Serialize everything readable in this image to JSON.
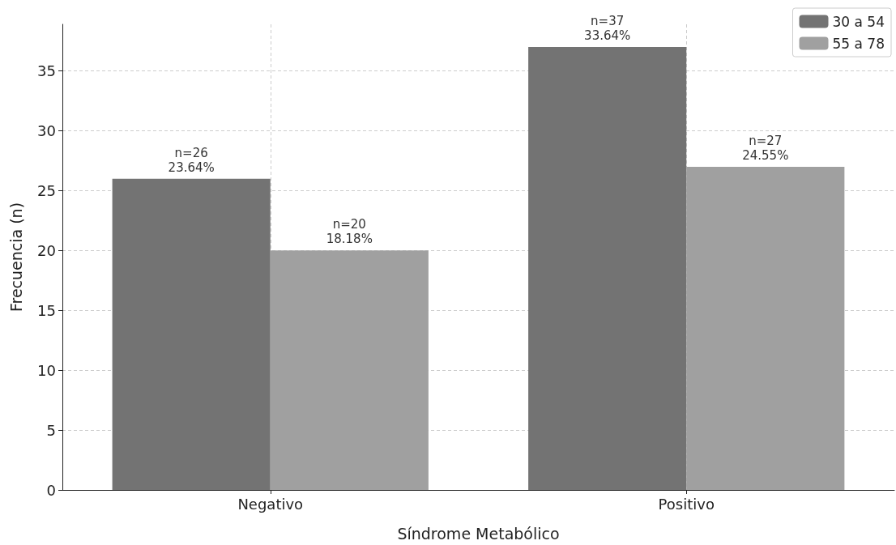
{
  "chart_data": {
    "type": "bar",
    "xlabel": "Síndrome Metabólico",
    "ylabel": "Frecuencia (n)",
    "categories": [
      "Negativo",
      "Positivo"
    ],
    "series": [
      {
        "name": "30 a 54",
        "color": "#737373",
        "values": [
          26,
          37
        ],
        "value_labels": [
          "n=26\n23.64%",
          "n=37\n33.64%"
        ]
      },
      {
        "name": "55 a 78",
        "color": "#a0a0a0",
        "values": [
          20,
          27
        ],
        "value_labels": [
          "n=20\n18.18%",
          "n=27\n24.55%"
        ]
      }
    ],
    "ylim": [
      0,
      38.9
    ],
    "yticks": [
      0,
      5,
      10,
      15,
      20,
      25,
      30,
      35
    ],
    "grid": true,
    "legend": "top right"
  }
}
